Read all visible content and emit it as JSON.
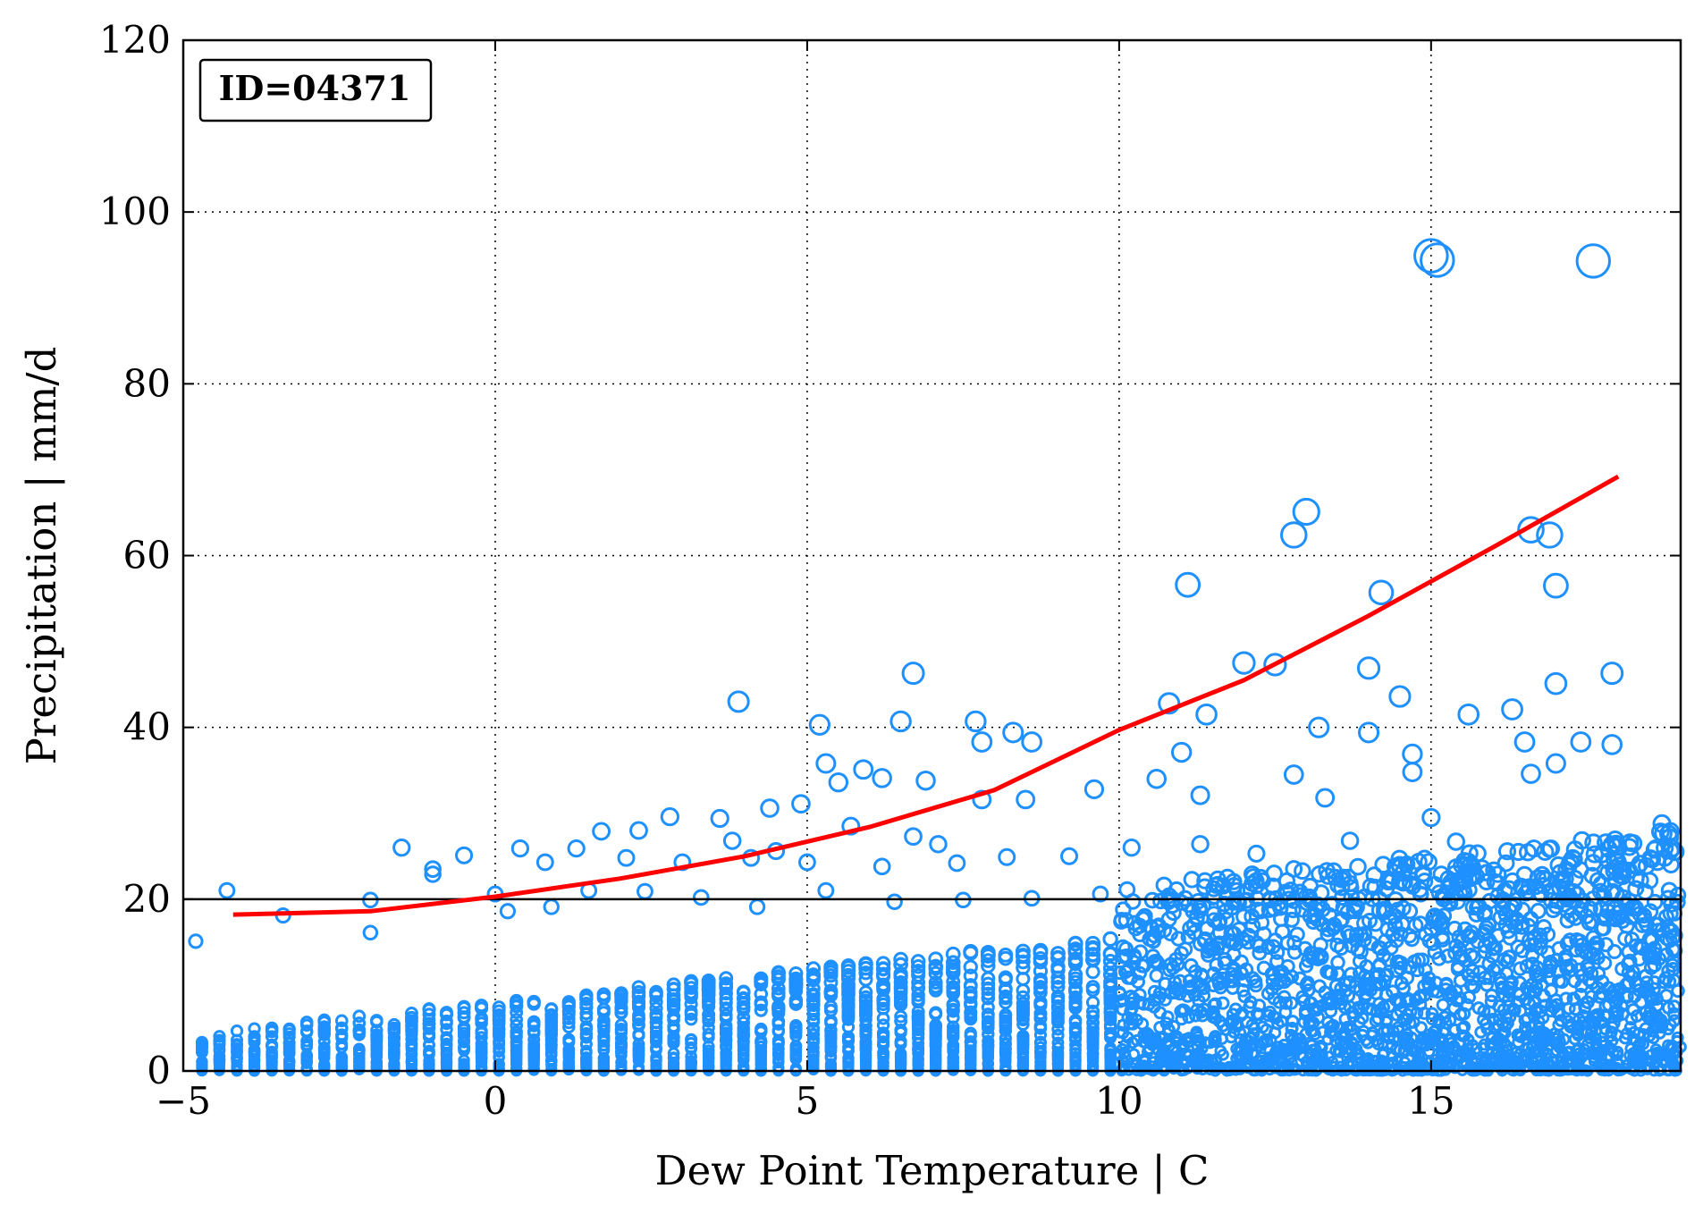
{
  "chart_data": {
    "type": "scatter",
    "annotation": "ID=04371",
    "xlabel": "Dew Point Temperature | C",
    "ylabel": "Precipitation | mm/d",
    "xlim": [
      -5,
      19
    ],
    "ylim": [
      0,
      120
    ],
    "xticks": [
      -5,
      0,
      5,
      10,
      15
    ],
    "yticks": [
      0,
      20,
      40,
      60,
      80,
      100,
      120
    ],
    "xtick_labels": [
      "−5",
      "0",
      "5",
      "10",
      "15"
    ],
    "ytick_labels": [
      "0",
      "20",
      "40",
      "60",
      "80",
      "100",
      "120"
    ],
    "grid": true,
    "threshold_line": {
      "y": 20,
      "color": "#000000"
    },
    "colors": {
      "points": "#1e90ff",
      "fit": "#ff0000",
      "axes": "#000000"
    },
    "marker": "open-circle, size proportional to precipitation",
    "series": [
      {
        "kind": "scatter",
        "points": [
          [
            3.9,
            43
          ],
          [
            6.7,
            46.3
          ],
          [
            5.2,
            40.3
          ],
          [
            6.5,
            40.7
          ],
          [
            7.7,
            40.7
          ],
          [
            8.3,
            39.4
          ],
          [
            8.6,
            38.3
          ],
          [
            7.8,
            38.3
          ],
          [
            11.1,
            56.6
          ],
          [
            12.8,
            62.4
          ],
          [
            13.0,
            65.1
          ],
          [
            12.0,
            47.5
          ],
          [
            12.5,
            47.3
          ],
          [
            14.2,
            55.7
          ],
          [
            14.0,
            46.9
          ],
          [
            15.0,
            94.9
          ],
          [
            15.1,
            94.4
          ],
          [
            17.6,
            94.3
          ],
          [
            16.6,
            63.0
          ],
          [
            16.9,
            62.4
          ],
          [
            17.0,
            56.5
          ],
          [
            17.0,
            45.1
          ],
          [
            17.9,
            46.3
          ],
          [
            10.8,
            42.8
          ],
          [
            11.4,
            41.5
          ],
          [
            13.2,
            40.0
          ],
          [
            14.5,
            43.6
          ],
          [
            14.0,
            39.4
          ],
          [
            15.6,
            41.5
          ],
          [
            16.3,
            42.1
          ],
          [
            17.0,
            35.8
          ],
          [
            17.4,
            38.3
          ],
          [
            17.9,
            38.0
          ],
          [
            16.5,
            38.3
          ],
          [
            16.6,
            34.6
          ],
          [
            14.7,
            36.9
          ],
          [
            14.7,
            34.8
          ],
          [
            12.8,
            34.5
          ],
          [
            11.0,
            37.1
          ],
          [
            10.6,
            34.0
          ],
          [
            11.3,
            32.1
          ],
          [
            13.3,
            31.8
          ],
          [
            9.6,
            32.8
          ],
          [
            8.5,
            31.6
          ],
          [
            7.8,
            31.6
          ],
          [
            6.9,
            33.8
          ],
          [
            6.2,
            34.1
          ],
          [
            5.9,
            35.1
          ],
          [
            5.5,
            33.6
          ],
          [
            5.3,
            35.8
          ],
          [
            4.9,
            31.1
          ],
          [
            4.4,
            30.6
          ],
          [
            3.6,
            29.4
          ],
          [
            2.8,
            29.6
          ],
          [
            1.7,
            27.9
          ],
          [
            2.3,
            28.0
          ],
          [
            3.8,
            26.8
          ],
          [
            5.7,
            28.5
          ],
          [
            6.7,
            27.3
          ],
          [
            7.1,
            26.4
          ],
          [
            0.4,
            25.9
          ],
          [
            1.3,
            25.9
          ],
          [
            -1.5,
            26
          ],
          [
            -1.0,
            23.5
          ],
          [
            -0.5,
            25.1
          ],
          [
            -4.3,
            21.0
          ],
          [
            -2.0,
            19.9
          ],
          [
            -3.4,
            18.1
          ],
          [
            -4.8,
            15.1
          ],
          [
            -2.0,
            16.1
          ],
          [
            -1.0,
            22.9
          ],
          [
            0.8,
            24.3
          ],
          [
            2.1,
            24.8
          ],
          [
            3.0,
            24.3
          ],
          [
            4.1,
            24.8
          ],
          [
            4.5,
            25.6
          ],
          [
            5.0,
            24.3
          ],
          [
            6.2,
            23.8
          ],
          [
            7.4,
            24.2
          ],
          [
            8.2,
            24.9
          ],
          [
            9.2,
            25.0
          ],
          [
            10.2,
            26.0
          ],
          [
            11.3,
            26.4
          ],
          [
            12.2,
            25.3
          ],
          [
            13.7,
            26.8
          ],
          [
            15.4,
            26.7
          ],
          [
            16.4,
            25.5
          ],
          [
            17.8,
            26.6
          ],
          [
            18.7,
            28.8
          ],
          [
            18.6,
            25.9
          ],
          [
            18.8,
            20.1
          ],
          [
            18.9,
            14.0
          ],
          [
            18.5,
            8.8
          ],
          [
            18.7,
            5.1
          ],
          [
            19.0,
            2.8
          ],
          [
            18.3,
            6.4
          ],
          [
            17.6,
            15.5
          ],
          [
            17.2,
            20.3
          ],
          [
            16.8,
            21.6
          ],
          [
            15.9,
            23.1
          ],
          [
            15.0,
            29.5
          ],
          [
            0.0,
            20.6
          ],
          [
            0.2,
            18.6
          ],
          [
            0.9,
            19.1
          ],
          [
            1.5,
            21.0
          ],
          [
            2.4,
            20.9
          ],
          [
            3.3,
            20.2
          ],
          [
            4.2,
            19.1
          ],
          [
            5.3,
            21.0
          ],
          [
            6.4,
            19.7
          ],
          [
            7.5,
            19.9
          ],
          [
            8.6,
            20.1
          ],
          [
            9.7,
            20.6
          ],
          [
            10.8,
            20.4
          ],
          [
            11.9,
            19.9
          ],
          [
            13.0,
            20.3
          ],
          [
            14.1,
            21.4
          ],
          [
            15.2,
            20.0
          ],
          [
            16.3,
            19.1
          ],
          [
            17.4,
            18.8
          ]
        ]
      },
      {
        "kind": "fit-line",
        "points": [
          [
            -4.2,
            18.2
          ],
          [
            -2,
            18.6
          ],
          [
            0,
            20.3
          ],
          [
            2,
            22.4
          ],
          [
            4,
            25.0
          ],
          [
            6,
            28.4
          ],
          [
            8,
            32.7
          ],
          [
            10,
            39.7
          ],
          [
            12,
            45.5
          ],
          [
            14,
            53.0
          ],
          [
            16,
            61.0
          ],
          [
            18,
            69.2
          ]
        ]
      }
    ]
  }
}
